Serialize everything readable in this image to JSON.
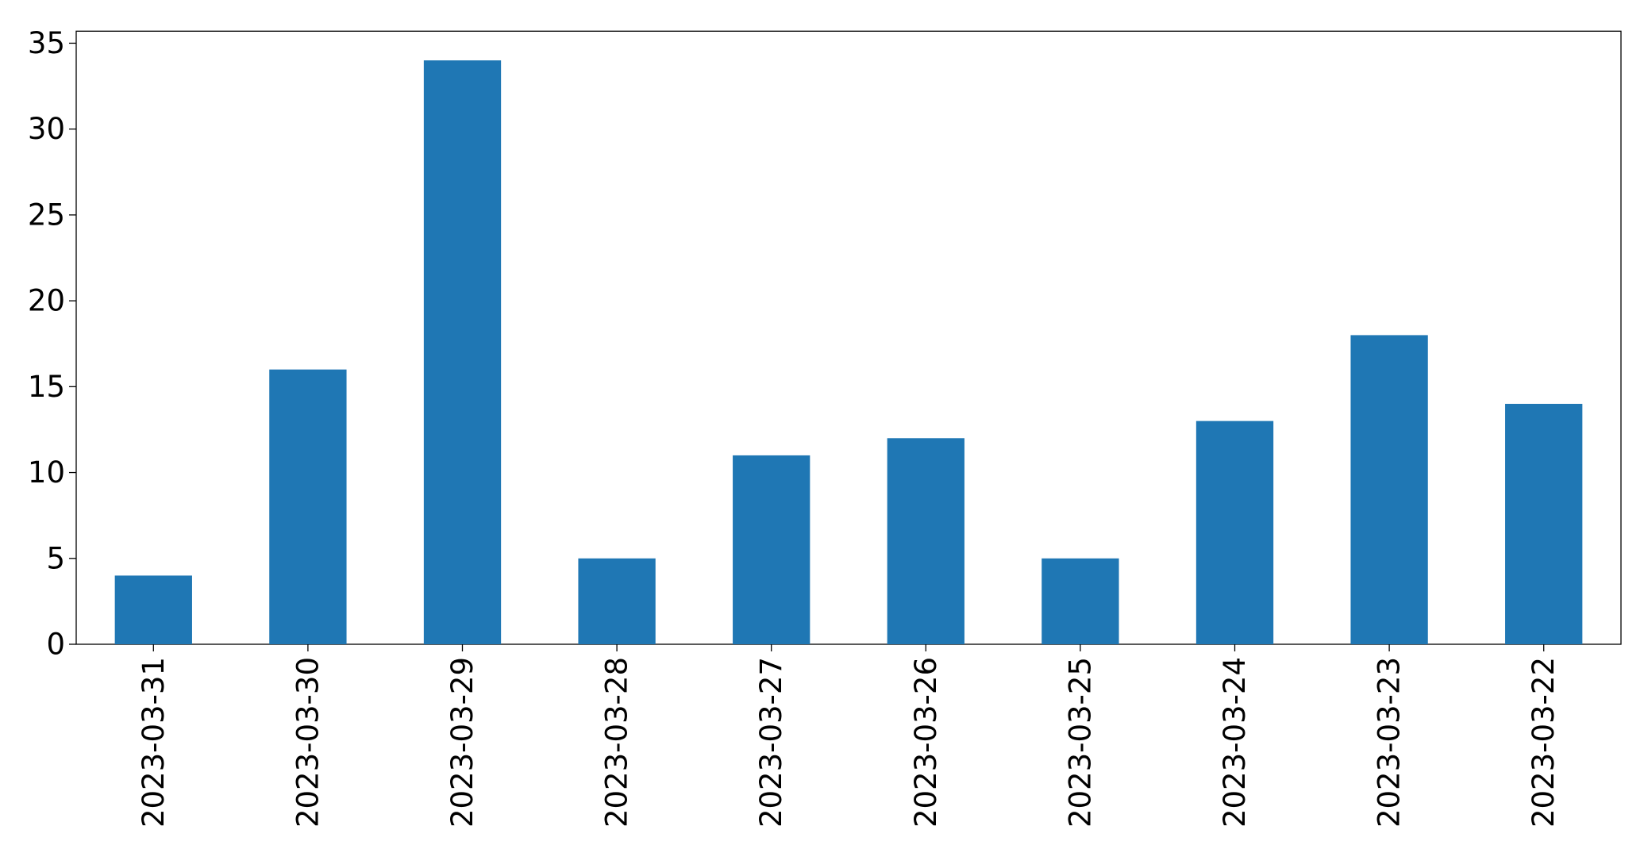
{
  "chart_data": {
    "type": "bar",
    "categories": [
      "2023-03-31",
      "2023-03-30",
      "2023-03-29",
      "2023-03-28",
      "2023-03-27",
      "2023-03-26",
      "2023-03-25",
      "2023-03-24",
      "2023-03-23",
      "2023-03-22"
    ],
    "values": [
      4,
      16,
      34,
      5,
      11,
      12,
      5,
      13,
      18,
      14
    ],
    "color": "#1f77b4",
    "ylim": [
      0,
      35.7
    ],
    "yticks": [
      0,
      5,
      10,
      15,
      20,
      25,
      30,
      35
    ],
    "grid": false
  }
}
